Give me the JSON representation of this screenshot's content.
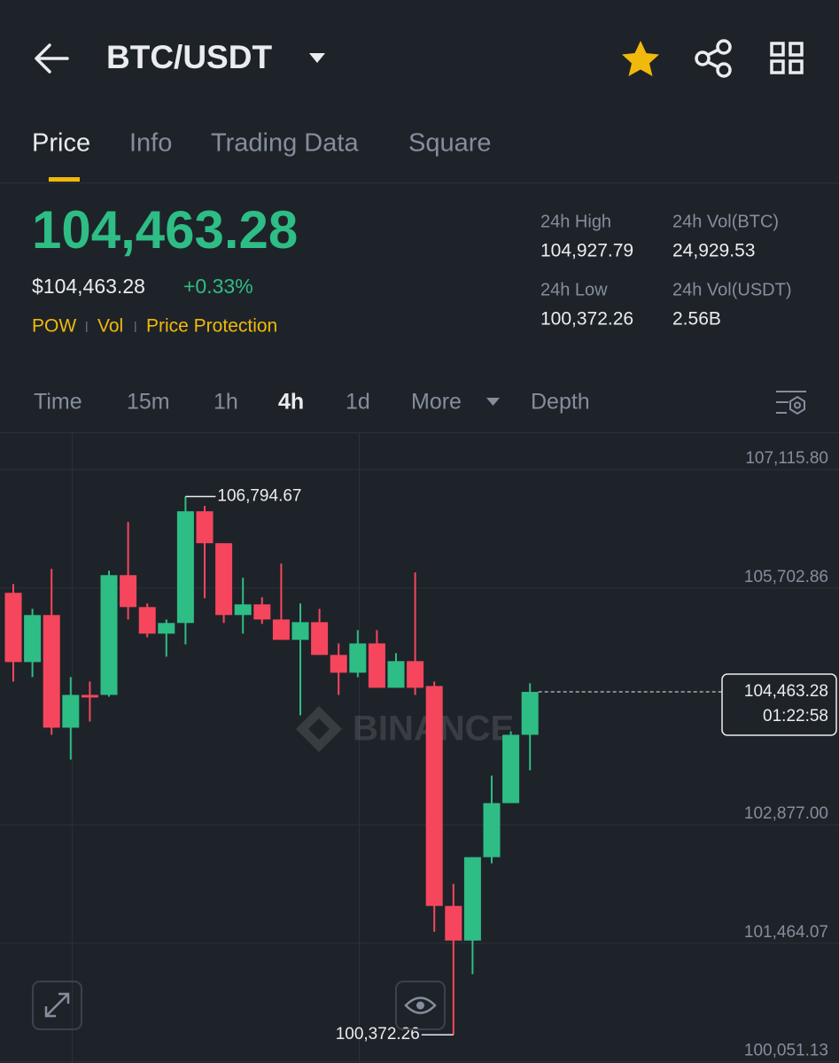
{
  "header": {
    "title": "BTC/USDT"
  },
  "tabs": [
    "Price",
    "Info",
    "Trading Data",
    "Square"
  ],
  "ticker": {
    "price": "104,463.28",
    "usd_price": "$104,463.28",
    "change": "+0.33%",
    "tags": [
      "POW",
      "Vol",
      "Price Protection"
    ]
  },
  "stats": [
    {
      "label": "24h High",
      "value": "104,927.79"
    },
    {
      "label": "24h Vol(BTC)",
      "value": "24,929.53"
    },
    {
      "label": "24h Low",
      "value": "100,372.26"
    },
    {
      "label": "24h Vol(USDT)",
      "value": "2.56B"
    }
  ],
  "intervals": [
    "Time",
    "15m",
    "1h",
    "4h",
    "1d",
    "More",
    "Depth"
  ],
  "chart_data": {
    "type": "candlestick",
    "watermark": "BINANCE",
    "colors": {
      "up": "#2ebd85",
      "down": "#f6465d"
    },
    "ylim": [
      100035,
      107550
    ],
    "yticks": [
      {
        "value": 107115.8,
        "label": "107,115.80"
      },
      {
        "value": 105702.86,
        "label": "105,702.86"
      },
      {
        "value": 102877.0,
        "label": "102,877.00"
      },
      {
        "value": 101464.07,
        "label": "101,464.07"
      },
      {
        "value": 100051.13,
        "label": "100,051.13"
      }
    ],
    "open": [
      105645,
      104819,
      105380,
      104036,
      104427,
      104427,
      105856,
      105475,
      105158,
      105285,
      106618,
      106237,
      105380,
      105507,
      105327,
      105084,
      105295,
      104904,
      104692,
      105041,
      104512,
      104830,
      104533,
      101909,
      101496,
      102491,
      103136,
      103951
    ],
    "high": [
      105750,
      105454,
      105930,
      104639,
      104586,
      105909,
      106491,
      105518,
      105327,
      106794.67,
      106682,
      106237,
      105825,
      105592,
      105994,
      105518,
      105454,
      105041,
      105200,
      105200,
      104925,
      105888,
      104586,
      102173,
      102491,
      103464,
      103993,
      104565
    ],
    "low": [
      104586,
      104639,
      103951,
      103655,
      104110,
      104406,
      105327,
      105115,
      104883,
      105031,
      105581,
      105285,
      105158,
      105274,
      105084,
      104184,
      104904,
      104427,
      104639,
      104512,
      104512,
      104427,
      101601,
      100372.26,
      101094,
      102417,
      103136,
      103528
    ],
    "close": [
      104819,
      105380,
      104036,
      104427,
      104396,
      105856,
      105475,
      105158,
      105285,
      106618,
      106237,
      105380,
      105507,
      105327,
      105084,
      105295,
      104904,
      104692,
      105041,
      104512,
      104830,
      104512,
      101909,
      101496,
      102491,
      103136,
      103951,
      104463.28
    ],
    "annotations": [
      {
        "value": 106794.67,
        "label": "106,794.67"
      },
      {
        "value": 100372.26,
        "label": "100,372.26"
      }
    ],
    "last_price": {
      "value": 104463.28,
      "label": "104,463.28"
    },
    "countdown": "01:22:58"
  }
}
